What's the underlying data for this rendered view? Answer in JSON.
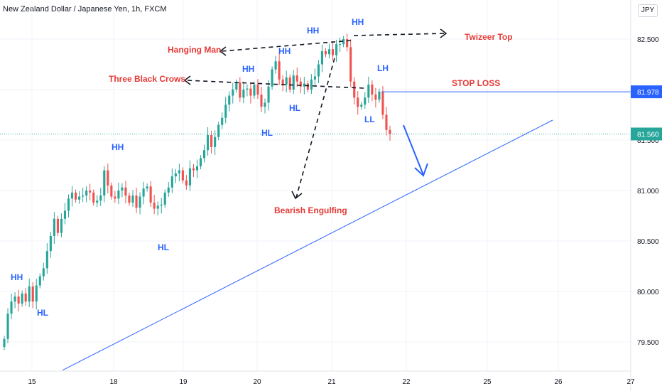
{
  "header": {
    "title": "New Zealand Dollar / Japanese Yen, 1h, FXCM",
    "currency_badge": "JPY"
  },
  "colors": {
    "bull": "#26a69a",
    "bear": "#ef5350",
    "annotation_red": "#e53935",
    "annotation_blue": "#2962ff",
    "trendline": "#2962ff",
    "price_line": "#26a69a",
    "grid": "#f0f3fa"
  },
  "chart_data": {
    "type": "candlestick",
    "x_ticks": [
      "15",
      "18",
      "19",
      "20",
      "21",
      "22",
      "25",
      "26",
      "27"
    ],
    "y_ticks": [
      "79.500",
      "80.000",
      "80.500",
      "81.000",
      "81.500",
      "82.500"
    ],
    "ylim": [
      79.22,
      82.76
    ],
    "grid": true,
    "price_axis_labels": [
      {
        "label": "81.978",
        "value": 81.978,
        "style": "stop"
      },
      {
        "label": "81.560",
        "value": 81.56,
        "style": "last"
      }
    ],
    "candle_series_close": [
      79.53,
      79.78,
      79.9,
      79.95,
      79.88,
      79.98,
      79.9,
      80.05,
      79.9,
      80.06,
      80.15,
      80.23,
      80.4,
      80.55,
      80.72,
      80.58,
      80.72,
      80.8,
      80.92,
      80.98,
      80.91,
      80.94,
      80.95,
      81.0,
      80.98,
      80.88,
      80.9,
      80.95,
      81.2,
      81.05,
      80.94,
      80.92,
      81.0,
      81.03,
      80.95,
      80.88,
      80.95,
      80.83,
      80.94,
      81.02,
      81.04,
      80.88,
      80.82,
      80.85,
      80.86,
      80.98,
      81.03,
      81.14,
      81.17,
      81.2,
      81.1,
      81.05,
      81.22,
      81.2,
      81.24,
      81.32,
      81.4,
      81.55,
      81.43,
      81.53,
      81.65,
      81.72,
      81.85,
      81.94,
      82.0,
      82.07,
      81.92,
      82.0,
      82.01,
      81.94,
      82.05,
      81.95,
      81.83,
      81.87,
      82.03,
      82.2,
      82.28,
      82.1,
      82.05,
      82.12,
      82.0,
      82.14,
      82.08,
      82.03,
      82.06,
      82.0,
      82.1,
      82.13,
      82.25,
      82.38,
      82.35,
      82.4,
      82.34,
      82.45,
      82.45,
      82.5,
      82.42,
      82.08,
      81.92,
      81.83,
      81.85,
      81.92,
      82.05,
      81.95,
      81.9,
      81.98,
      81.75,
      81.6,
      81.56
    ],
    "horizontal_lines": [
      {
        "name": "STOP LOSS",
        "value": 81.978
      }
    ],
    "trendline": {
      "from": [
        "15",
        79.22
      ],
      "to": [
        "26",
        81.7
      ]
    },
    "annotations": {
      "patterns": [
        "Hanging Man",
        "Three Black Crows",
        "Twizeer Top",
        "Bearish Engulfing",
        "STOP LOSS"
      ],
      "structure": [
        "HH",
        "HL",
        "HH",
        "HL",
        "HH",
        "HL",
        "HH",
        "HH",
        "HL",
        "HH",
        "LH",
        "LL"
      ]
    }
  }
}
